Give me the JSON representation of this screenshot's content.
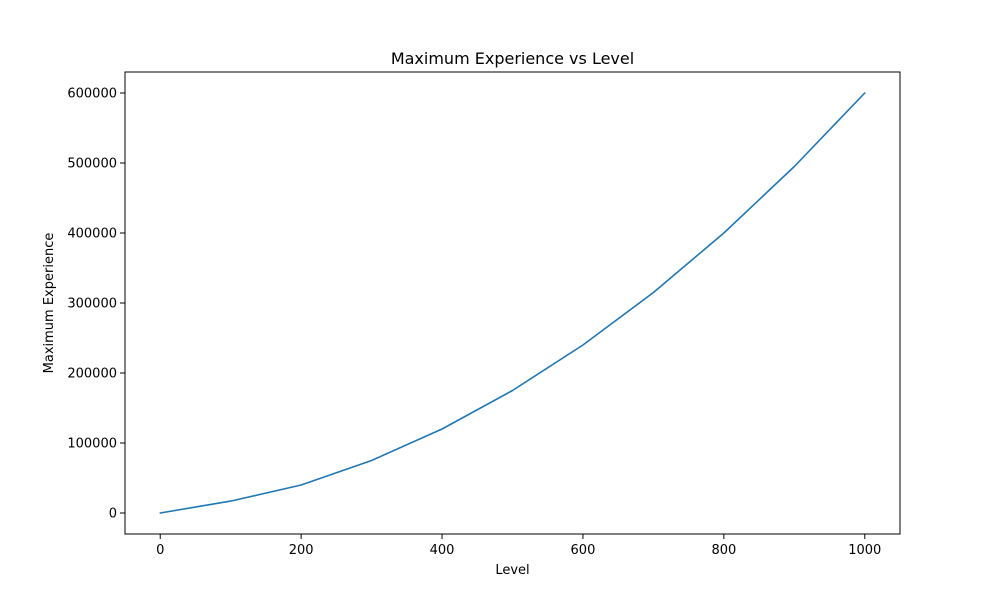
{
  "chart_data": {
    "type": "line",
    "title": "Maximum Experience vs Level",
    "xlabel": "Level",
    "ylabel": "Maximum Experience",
    "xlim": [
      -50,
      1050
    ],
    "ylim": [
      -30000,
      630000
    ],
    "xticks": [
      0,
      200,
      400,
      600,
      800,
      1000
    ],
    "xtick_labels": [
      "0",
      "200",
      "400",
      "600",
      "800",
      "1000"
    ],
    "yticks": [
      0,
      100000,
      200000,
      300000,
      400000,
      500000,
      600000
    ],
    "ytick_labels": [
      "0",
      "100000",
      "200000",
      "300000",
      "400000",
      "500000",
      "600000"
    ],
    "grid": false,
    "series": [
      {
        "color": "#1f77b4",
        "x": [
          0,
          100,
          200,
          300,
          400,
          500,
          600,
          700,
          800,
          900,
          1000
        ],
        "y": [
          0,
          17000,
          40000,
          75000,
          120000,
          175000,
          240000,
          315000,
          400000,
          495000,
          600000
        ]
      }
    ]
  }
}
